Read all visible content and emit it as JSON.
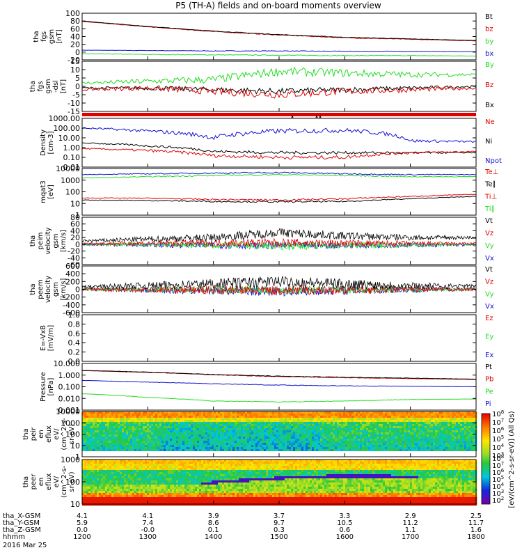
{
  "title": "P5 (TH-A) fields and on-board moments overview",
  "colors": {
    "black": "#000000",
    "red": "#e00000",
    "green": "#22dd22",
    "blue": "#1010d0"
  },
  "panels": [
    {
      "id": "fgs-gsm",
      "ylabel": [
        "tha",
        "fgs",
        "gsm",
        "[nT]"
      ],
      "ticks": [
        "100",
        "80",
        "60",
        "40",
        "20",
        "0",
        "-20"
      ],
      "legend": [
        {
          "t": "Bt",
          "c": "black"
        },
        {
          "t": "bz",
          "c": "red"
        },
        {
          "t": "by",
          "c": "green"
        },
        {
          "t": "bx",
          "c": "blue"
        }
      ]
    },
    {
      "id": "fgs-dsl",
      "ylabel": [
        "tha",
        "fgs",
        "gsm",
        "-dsl",
        "[nT]"
      ],
      "ticks": [
        "15",
        "10",
        "5",
        "0",
        "-5",
        "-10",
        "-15"
      ],
      "legend": [
        {
          "t": "By",
          "c": "green"
        },
        {
          "t": "Bz",
          "c": "red"
        },
        {
          "t": "Bx",
          "c": "black"
        }
      ]
    },
    {
      "id": "density",
      "ylabel": [
        "Density",
        "[cm-3]"
      ],
      "ticks": [
        "1000.00",
        "100.00",
        "10.00",
        "1.00",
        "0.10",
        "0.01"
      ],
      "legend": [
        {
          "t": "Ne",
          "c": "red"
        },
        {
          "t": "Ni",
          "c": "black"
        },
        {
          "t": "Npot",
          "c": "blue"
        }
      ]
    },
    {
      "id": "temp",
      "ylabel": [
        "mqat3",
        "[eV]"
      ],
      "ticks": [
        "10000",
        "1000",
        "100",
        "10",
        "1"
      ],
      "legend": [
        {
          "t": "Te⊥",
          "c": "red"
        },
        {
          "t": "Te∥",
          "c": "black"
        },
        {
          "t": "Ti⊥",
          "c": "red"
        },
        {
          "t": "Ti∥",
          "c": "green"
        }
      ]
    },
    {
      "id": "ion-vel",
      "ylabel": [
        "tha",
        "peim",
        "velocity",
        "gsm",
        "[km/s]"
      ],
      "ticks": [
        "80",
        "60",
        "40",
        "20",
        "0",
        "-20",
        "-40",
        "-60"
      ],
      "legend": [
        {
          "t": "Vt",
          "c": "black"
        },
        {
          "t": "Vz",
          "c": "red"
        },
        {
          "t": "Vy",
          "c": "green"
        },
        {
          "t": "Vx",
          "c": "blue"
        }
      ]
    },
    {
      "id": "el-vel",
      "ylabel": [
        "tha",
        "peem",
        "velocity",
        "gsm",
        "[km/s]"
      ],
      "ticks": [
        "600",
        "400",
        "200",
        "0",
        "-200",
        "-400",
        "-600"
      ],
      "legend": [
        {
          "t": "Vt",
          "c": "black"
        },
        {
          "t": "Vz",
          "c": "red"
        },
        {
          "t": "Vy",
          "c": "green"
        },
        {
          "t": "Vx",
          "c": "blue"
        }
      ]
    },
    {
      "id": "efield",
      "ylabel": [
        "E=-VxB",
        "[mV/m]"
      ],
      "ticks": [
        "1.0",
        "0.8",
        "0.6",
        "0.4",
        "0.2",
        "0.0"
      ],
      "legend": [
        {
          "t": "Ez",
          "c": "red"
        },
        {
          "t": "Ey",
          "c": "green"
        },
        {
          "t": "Ex",
          "c": "blue"
        }
      ]
    },
    {
      "id": "pressure",
      "ylabel": [
        "Pressure",
        "[nPa]"
      ],
      "ticks": [
        "10.000",
        "1.000",
        "0.100",
        "0.010",
        "0.001"
      ],
      "legend": [
        {
          "t": "Pt",
          "c": "black"
        },
        {
          "t": "Pb",
          "c": "red"
        },
        {
          "t": "Pe",
          "c": "green"
        },
        {
          "t": "Pi",
          "c": "blue"
        }
      ]
    },
    {
      "id": "ion-spec",
      "ylabel": [
        "tha",
        "peir",
        "en",
        "eflux",
        "eV/",
        "(cm^2-s-",
        "sr-eV)"
      ],
      "ticks": [
        "10000",
        "1000",
        "100",
        "10",
        "1"
      ],
      "legend": []
    },
    {
      "id": "el-spec",
      "ylabel": [
        "tha",
        "peer",
        "en",
        "eflux",
        "eV/",
        "(cm^2-s-",
        "sr-eV)"
      ],
      "ticks": [
        "1000",
        "100",
        "10"
      ],
      "legend": []
    }
  ],
  "colorbar": {
    "label": "[eV/(cm^2-s-sr-eV)] (All Qs)",
    "upper_ticks": [
      "10^8",
      "10^7",
      "10^6",
      "10^5",
      "10^4",
      "10^3"
    ],
    "lower_ticks": [
      "10^8",
      "10^7",
      "10^6",
      "10^5",
      "10^4",
      "10^3",
      "10^2"
    ]
  },
  "xaxis": {
    "rows": [
      {
        "label": "tha_X-GSM",
        "vals": [
          "4.1",
          "4.1",
          "3.9",
          "3.7",
          "3.3",
          "2.9",
          "2.5"
        ]
      },
      {
        "label": "tha_Y-GSM",
        "vals": [
          "5.9",
          "7.4",
          "8.6",
          "9.7",
          "10.5",
          "11.2",
          "11.7"
        ]
      },
      {
        "label": "tha_Z-GSM",
        "vals": [
          "0.0",
          "-0.0",
          "0.1",
          "0.3",
          "0.6",
          "1.1",
          "1.6"
        ]
      },
      {
        "label": "hhmm",
        "vals": [
          "1200",
          "1300",
          "1400",
          "1500",
          "1600",
          "1700",
          "1800"
        ]
      }
    ],
    "date": "2016 Mar 25"
  },
  "chart_data": [
    {
      "type": "line",
      "title": "P5 (TH-A) fields and on-board moments overview",
      "ylabel": "tha fgs gsm [nT]",
      "ylim": [
        -20,
        100
      ],
      "x": [
        "1200",
        "1300",
        "1400",
        "1500",
        "1600",
        "1700",
        "1800"
      ],
      "series": [
        {
          "name": "Bt",
          "values": [
            80,
            66,
            54,
            45,
            38,
            34,
            30
          ]
        },
        {
          "name": "bz",
          "values": [
            79,
            65,
            53,
            44,
            37,
            33,
            29
          ]
        },
        {
          "name": "by",
          "values": [
            -4,
            -6,
            -7,
            -8,
            -9,
            -9,
            -10
          ]
        },
        {
          "name": "bx",
          "values": [
            5,
            4,
            3,
            3,
            2,
            2,
            1
          ]
        }
      ]
    },
    {
      "type": "line",
      "ylabel": "tha fgs gsm-dsl [nT]",
      "ylim": [
        -15,
        15
      ],
      "x": [
        "1200",
        "1300",
        "1400",
        "1500",
        "1600",
        "1700",
        "1800"
      ],
      "series": [
        {
          "name": "By",
          "values": [
            2,
            3,
            4,
            9,
            8,
            7,
            7
          ]
        },
        {
          "name": "Bz",
          "values": [
            -2,
            -1,
            -3,
            -5,
            -3,
            -2,
            -1
          ]
        },
        {
          "name": "Bx",
          "values": [
            -1,
            -1,
            -2,
            -3,
            -2,
            -1,
            0
          ]
        }
      ]
    },
    {
      "type": "line",
      "ylabel": "Density [cm-3]",
      "log": true,
      "ylim": [
        0.01,
        1000
      ],
      "x": [
        "1200",
        "1300",
        "1400",
        "1500",
        "1600",
        "1700",
        "1800"
      ],
      "series": [
        {
          "name": "Ne",
          "values": [
            0.8,
            0.5,
            0.15,
            0.1,
            0.1,
            0.3,
            0.4
          ]
        },
        {
          "name": "Ni",
          "values": [
            3,
            1.5,
            0.4,
            0.3,
            0.3,
            0.3,
            0.3
          ]
        },
        {
          "name": "Npot",
          "values": [
            100,
            50,
            10,
            50,
            60,
            5,
            4
          ]
        }
      ]
    },
    {
      "type": "line",
      "ylabel": "mqat3 [eV]",
      "log": true,
      "ylim": [
        1,
        10000
      ],
      "x": [
        "1200",
        "1300",
        "1400",
        "1500",
        "1600",
        "1700",
        "1800"
      ],
      "series": [
        {
          "name": "Te⊥",
          "values": [
            30,
            28,
            22,
            20,
            25,
            40,
            60
          ]
        },
        {
          "name": "Te∥",
          "values": [
            20,
            18,
            15,
            14,
            15,
            25,
            40
          ]
        },
        {
          "name": "Ti⊥",
          "values": [
            3000,
            3500,
            4000,
            4500,
            3500,
            3000,
            3000
          ]
        },
        {
          "name": "Ti∥",
          "values": [
            1500,
            2000,
            2500,
            3000,
            2500,
            2000,
            2000
          ]
        }
      ]
    },
    {
      "type": "line",
      "ylabel": "tha peim velocity gsm [km/s]",
      "ylim": [
        -60,
        80
      ],
      "x": [
        "1200",
        "1300",
        "1400",
        "1500",
        "1600",
        "1700",
        "1800"
      ],
      "series": [
        {
          "name": "Vt",
          "values": [
            10,
            15,
            20,
            35,
            25,
            20,
            20
          ]
        },
        {
          "name": "Vz",
          "values": [
            2,
            3,
            4,
            5,
            3,
            2,
            2
          ]
        },
        {
          "name": "Vy",
          "values": [
            0,
            0,
            -2,
            -5,
            -3,
            -2,
            -1
          ]
        },
        {
          "name": "Vx",
          "values": [
            0,
            -2,
            -3,
            -4,
            -3,
            -2,
            -2
          ]
        }
      ]
    },
    {
      "type": "line",
      "ylabel": "tha peem velocity gsm [km/s]",
      "ylim": [
        -600,
        600
      ],
      "x": [
        "1200",
        "1300",
        "1400",
        "1500",
        "1600",
        "1700",
        "1800"
      ],
      "series": [
        {
          "name": "Vt",
          "values": [
            60,
            90,
            150,
            200,
            140,
            90,
            80
          ]
        },
        {
          "name": "Vz",
          "values": [
            0,
            -10,
            -20,
            -30,
            -20,
            -10,
            0
          ]
        },
        {
          "name": "Vy",
          "values": [
            0,
            -10,
            -15,
            -20,
            -15,
            -10,
            0
          ]
        },
        {
          "name": "Vx",
          "values": [
            0,
            -20,
            -30,
            -60,
            -30,
            -10,
            0
          ]
        }
      ]
    },
    {
      "type": "line",
      "ylabel": "E=-VxB [mV/m]",
      "ylim": [
        0,
        1
      ],
      "x": [
        "1200",
        "1300",
        "1400",
        "1500",
        "1600",
        "1700",
        "1800"
      ],
      "series": []
    },
    {
      "type": "line",
      "ylabel": "Pressure [nPa]",
      "log": true,
      "ylim": [
        0.001,
        10
      ],
      "x": [
        "1200",
        "1300",
        "1400",
        "1500",
        "1600",
        "1700",
        "1800"
      ],
      "series": [
        {
          "name": "Pt",
          "values": [
            2.5,
            1.8,
            1.1,
            0.8,
            0.65,
            0.55,
            0.45
          ]
        },
        {
          "name": "Pb",
          "values": [
            2.4,
            1.7,
            1.05,
            0.75,
            0.6,
            0.5,
            0.42
          ]
        },
        {
          "name": "Pe",
          "values": [
            0.025,
            0.012,
            0.006,
            0.005,
            0.006,
            0.008,
            0.009
          ]
        },
        {
          "name": "Pi",
          "values": [
            0.35,
            0.25,
            0.18,
            0.14,
            0.12,
            0.11,
            0.1
          ]
        }
      ]
    },
    {
      "type": "heatmap",
      "ylabel": "tha peir en eflux eV/(cm^2-s-sr-eV)",
      "log": true,
      "ylim": [
        1,
        20000
      ],
      "x": [
        "1200",
        "1300",
        "1400",
        "1500",
        "1600",
        "1700",
        "1800"
      ]
    },
    {
      "type": "heatmap",
      "ylabel": "tha peer en eflux eV/(cm^2-s-sr-eV)",
      "log": true,
      "ylim": [
        5,
        20000
      ],
      "x": [
        "1200",
        "1300",
        "1400",
        "1500",
        "1600",
        "1700",
        "1800"
      ]
    }
  ]
}
